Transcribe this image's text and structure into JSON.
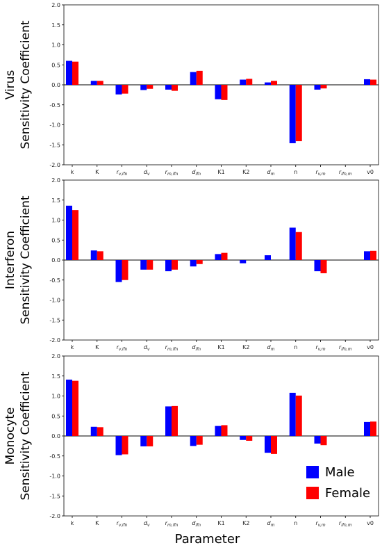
{
  "chart_data": [
    {
      "type": "bar",
      "ylabel_line1": "Virus",
      "ylabel_line2": "Sensitivity Coefficient",
      "xlabel": "",
      "ylim": [
        -2.0,
        2.0
      ],
      "yticks": [
        "-2.0",
        "-1.5",
        "-1.0",
        "-0.5",
        "0.0",
        "0.5",
        "1.0",
        "1.5",
        "2.0"
      ],
      "categories": [
        "k",
        "K",
        "r_{v,ifn}",
        "d_{v}",
        "r_{m,ifn}",
        "d_{ifn}",
        "K1",
        "K2",
        "d_{m}",
        "n",
        "r_{v,m}",
        "r_{ifn,m}",
        "v0"
      ],
      "series": [
        {
          "name": "Male",
          "values": [
            0.6,
            0.1,
            -0.24,
            -0.13,
            -0.12,
            0.32,
            -0.36,
            0.13,
            0.06,
            -1.46,
            -0.12,
            0.0,
            0.14
          ]
        },
        {
          "name": "Female",
          "values": [
            0.58,
            0.1,
            -0.22,
            -0.1,
            -0.15,
            0.35,
            -0.38,
            0.15,
            0.1,
            -1.41,
            -0.09,
            0.0,
            0.13
          ]
        }
      ]
    },
    {
      "type": "bar",
      "ylabel_line1": "Interferon",
      "ylabel_line2": "Sensitivity Coefficient",
      "xlabel": "",
      "ylim": [
        -2.0,
        2.0
      ],
      "yticks": [
        "-2.0",
        "-1.5",
        "-1.0",
        "-0.5",
        "0.0",
        "0.5",
        "1.0",
        "1.5",
        "2.0"
      ],
      "categories": [
        "k",
        "K",
        "r_{v,ifn}",
        "d_{v}",
        "r_{m,ifn}",
        "d_{ifn}",
        "K1",
        "K2",
        "d_{m}",
        "n",
        "r_{v,m}",
        "r_{ifn,m}",
        "v0"
      ],
      "series": [
        {
          "name": "Male",
          "values": [
            1.36,
            0.24,
            -0.55,
            -0.24,
            -0.28,
            -0.16,
            0.15,
            -0.08,
            0.12,
            0.81,
            -0.28,
            0.0,
            0.22
          ]
        },
        {
          "name": "Female",
          "values": [
            1.25,
            0.22,
            -0.5,
            -0.24,
            -0.24,
            -0.1,
            0.18,
            0.0,
            0.0,
            0.7,
            -0.33,
            0.0,
            0.23
          ]
        }
      ]
    },
    {
      "type": "bar",
      "ylabel_line1": "Monocyte",
      "ylabel_line2": "Sensitivity Coefficient",
      "xlabel": "Parameter",
      "ylim": [
        -2.0,
        2.0
      ],
      "yticks": [
        "-2.0",
        "-1.5",
        "-1.0",
        "-0.5",
        "0.0",
        "0.5",
        "1.0",
        "1.5",
        "2.0"
      ],
      "categories": [
        "k",
        "K",
        "r_{v,ifn}",
        "d_{v}",
        "r_{m,ifn}",
        "d_{ifn}",
        "K1",
        "K2",
        "d_{m}",
        "n",
        "r_{v,m}",
        "r_{ifn,m}",
        "v0"
      ],
      "series": [
        {
          "name": "Male",
          "values": [
            1.41,
            0.23,
            -0.48,
            -0.26,
            0.74,
            -0.25,
            0.25,
            -0.1,
            -0.42,
            1.08,
            -0.19,
            0.0,
            0.35
          ]
        },
        {
          "name": "Female",
          "values": [
            1.38,
            0.22,
            -0.46,
            -0.26,
            0.75,
            -0.22,
            0.27,
            -0.12,
            -0.45,
            1.01,
            -0.23,
            0.0,
            0.36
          ]
        }
      ],
      "legend": {
        "placement": "bottom-right",
        "entries": [
          "Male",
          "Female"
        ]
      }
    }
  ],
  "colors": {
    "Male": "#0000ff",
    "Female": "#ff0000"
  }
}
